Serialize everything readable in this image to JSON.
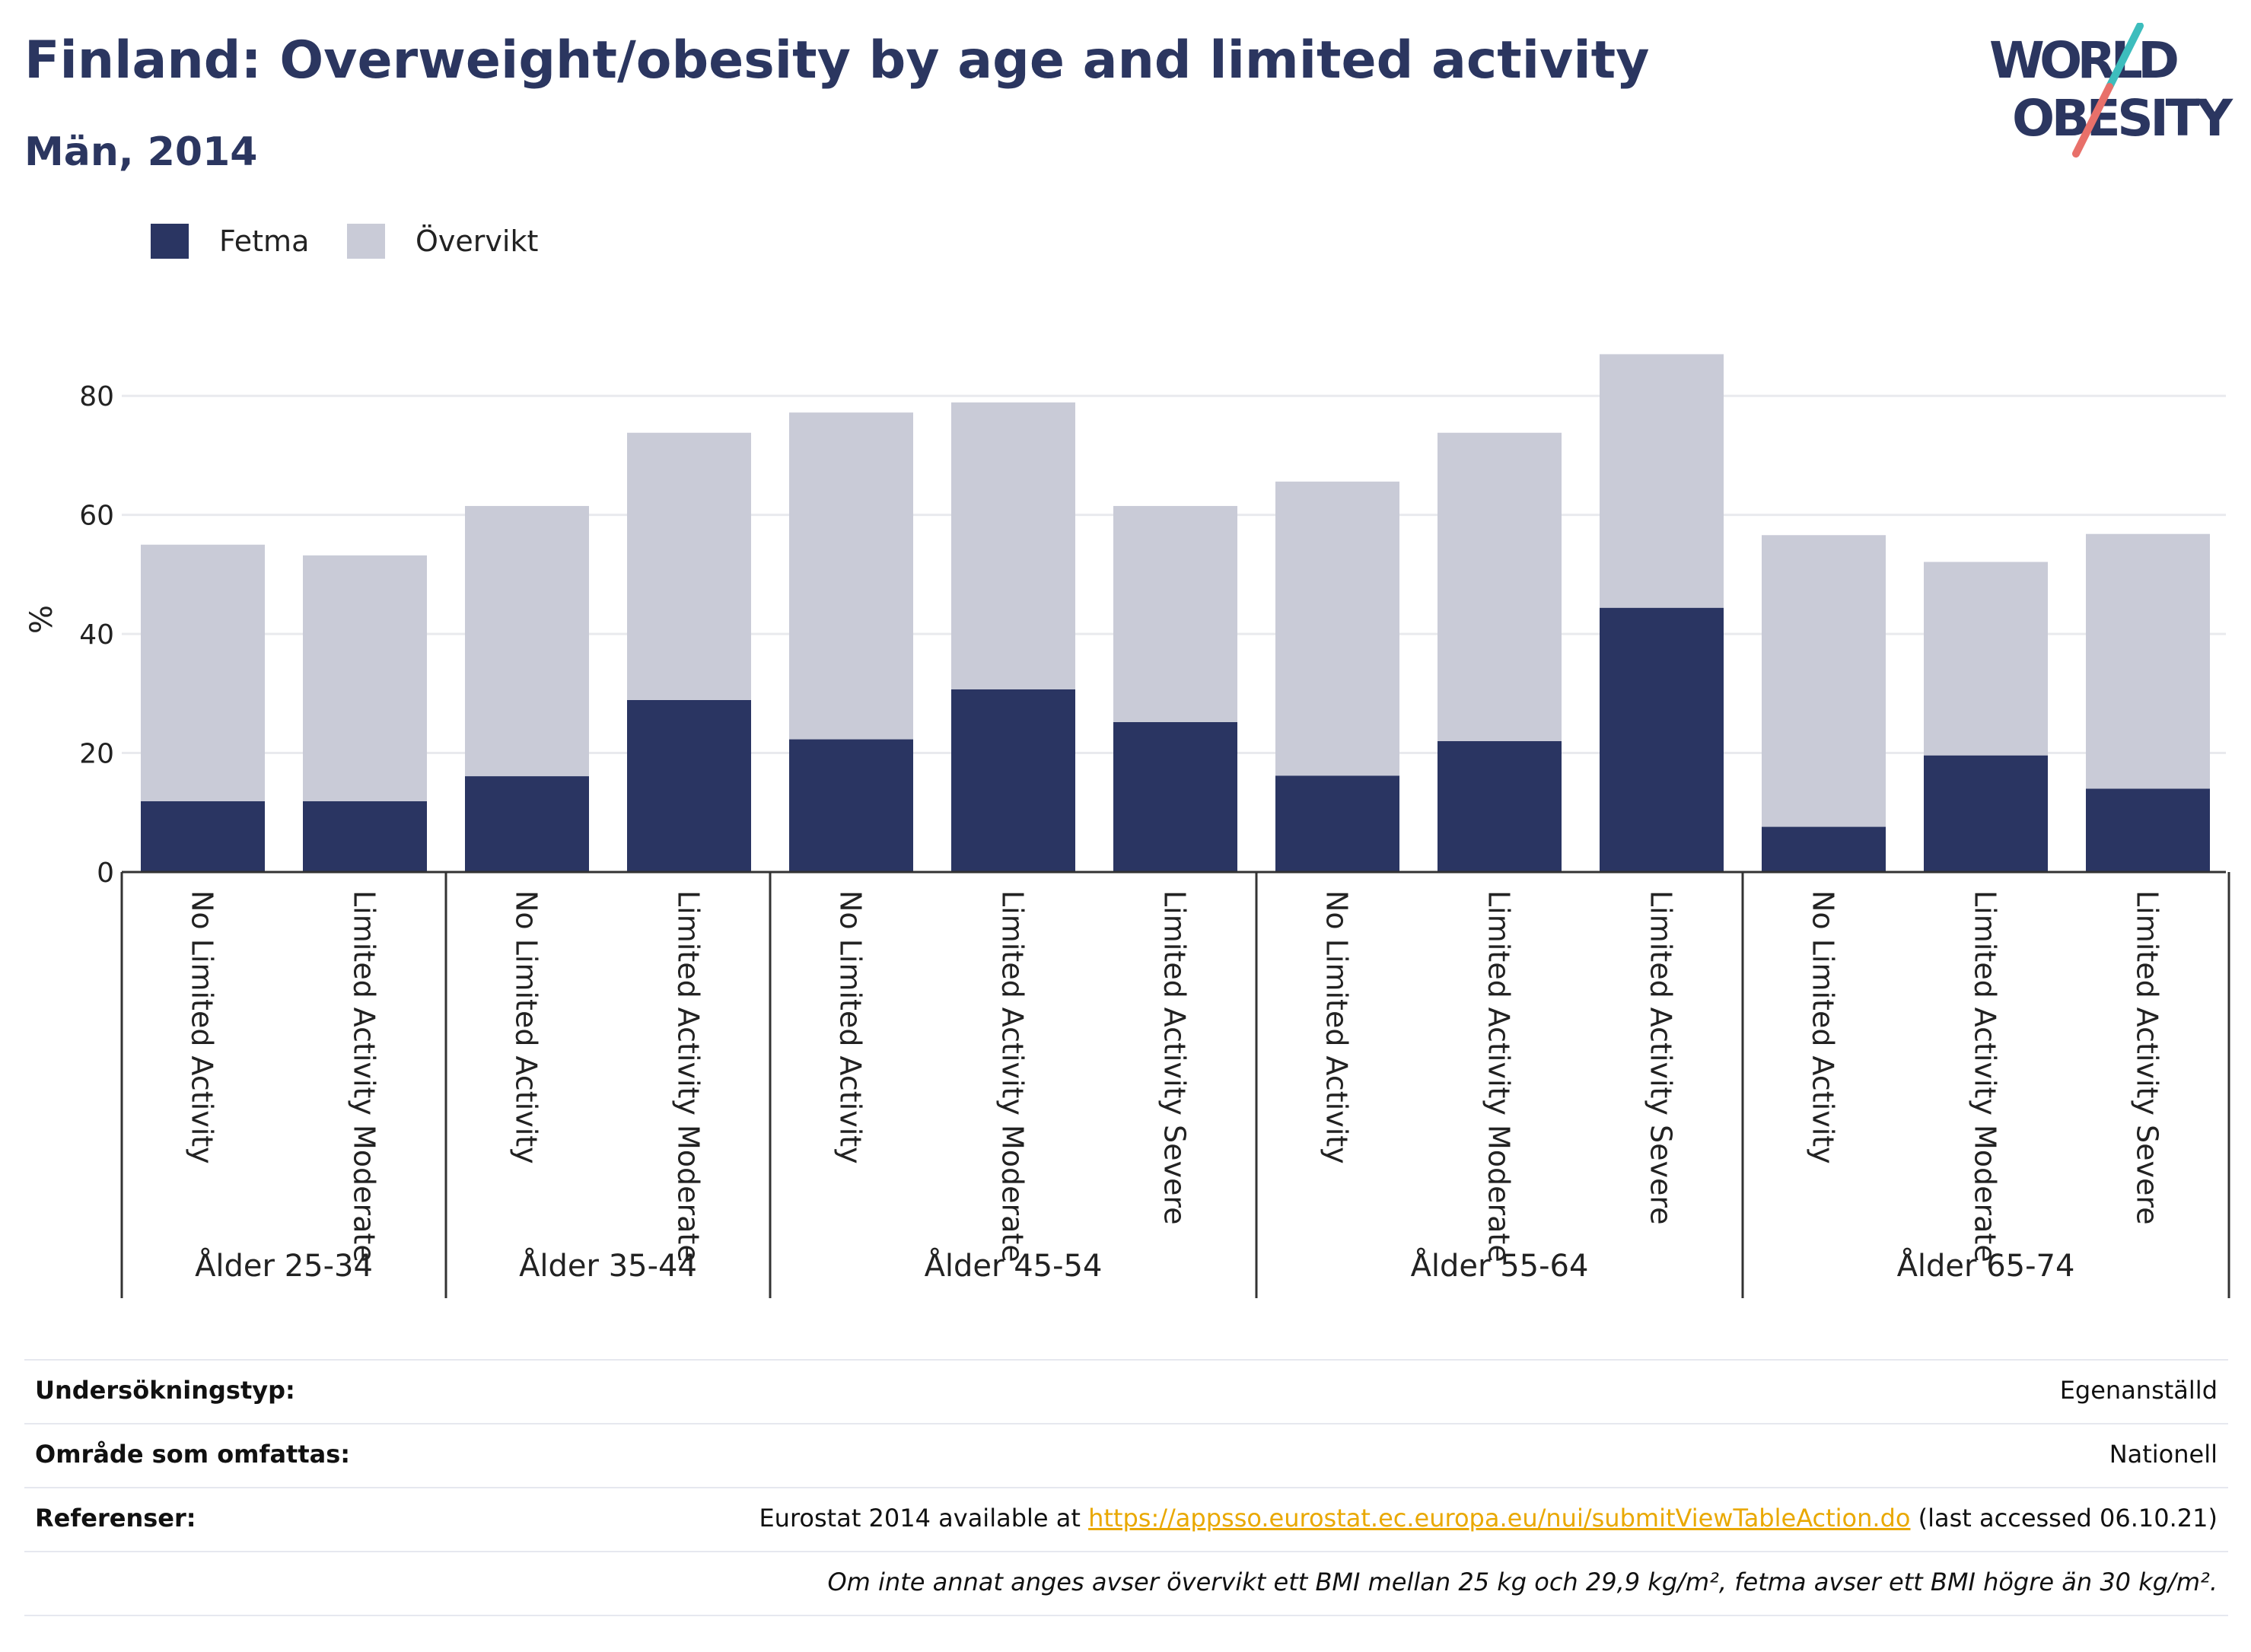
{
  "header": {
    "title": "Finland: Overweight/obesity by age and limited activity",
    "subtitle": "Män, 2014"
  },
  "logo": {
    "line1": "WORLD",
    "line2": "OBESITY",
    "accent1": "#3dbdbd",
    "accent2": "#e8706a"
  },
  "legend": {
    "items": [
      {
        "label": "Fetma",
        "color": "#2a3562"
      },
      {
        "label": "Övervikt",
        "color": "#c9cbd7"
      }
    ]
  },
  "chart_data": {
    "type": "bar",
    "stacked": true,
    "ylabel": "%",
    "ylim": [
      0,
      90
    ],
    "yticks": [
      0,
      20,
      40,
      60,
      80
    ],
    "grid": true,
    "legend_position": "top-left",
    "groups": [
      {
        "label": "Ålder 25-34",
        "categories": [
          "No Limited Activity",
          "Limited Activity Moderate"
        ]
      },
      {
        "label": "Ålder 35-44",
        "categories": [
          "No Limited Activity",
          "Limited Activity Moderate"
        ]
      },
      {
        "label": "Ålder 45-54",
        "categories": [
          "No Limited Activity",
          "Limited Activity Moderate",
          "Limited Activity Severe"
        ]
      },
      {
        "label": "Ålder 55-64",
        "categories": [
          "No Limited Activity",
          "Limited Activity Moderate",
          "Limited Activity Severe"
        ]
      },
      {
        "label": "Ålder 65-74",
        "categories": [
          "No Limited Activity",
          "Limited Activity Moderate",
          "Limited Activity Severe"
        ]
      }
    ],
    "series": [
      {
        "name": "Fetma",
        "color": "#2a3562",
        "values": [
          11.9,
          11.9,
          16.1,
          28.9,
          22.3,
          30.7,
          25.2,
          16.2,
          22.0,
          44.4,
          7.6,
          19.6,
          14.0
        ]
      },
      {
        "name": "Övervikt",
        "color": "#c9cbd7",
        "values": [
          43.1,
          41.3,
          45.4,
          44.9,
          54.9,
          48.2,
          36.3,
          49.4,
          51.8,
          42.6,
          49.0,
          32.5,
          42.8
        ]
      }
    ]
  },
  "info": {
    "rows": [
      {
        "label": "Undersökningstyp:",
        "value": "Egenanställd"
      },
      {
        "label": "Område som omfattas:",
        "value": "Nationell"
      },
      {
        "label": "Referenser:",
        "prefix": "Eurostat 2014 available at ",
        "link": "https://appsso.eurostat.ec.europa.eu/nui/submitViewTableAction.do",
        "suffix": " (last accessed 06.10.21)"
      }
    ],
    "note": "Om inte annat anges avser övervikt ett BMI mellan 25 kg och 29,9 kg/m², fetma avser ett BMI högre än 30 kg/m²."
  }
}
